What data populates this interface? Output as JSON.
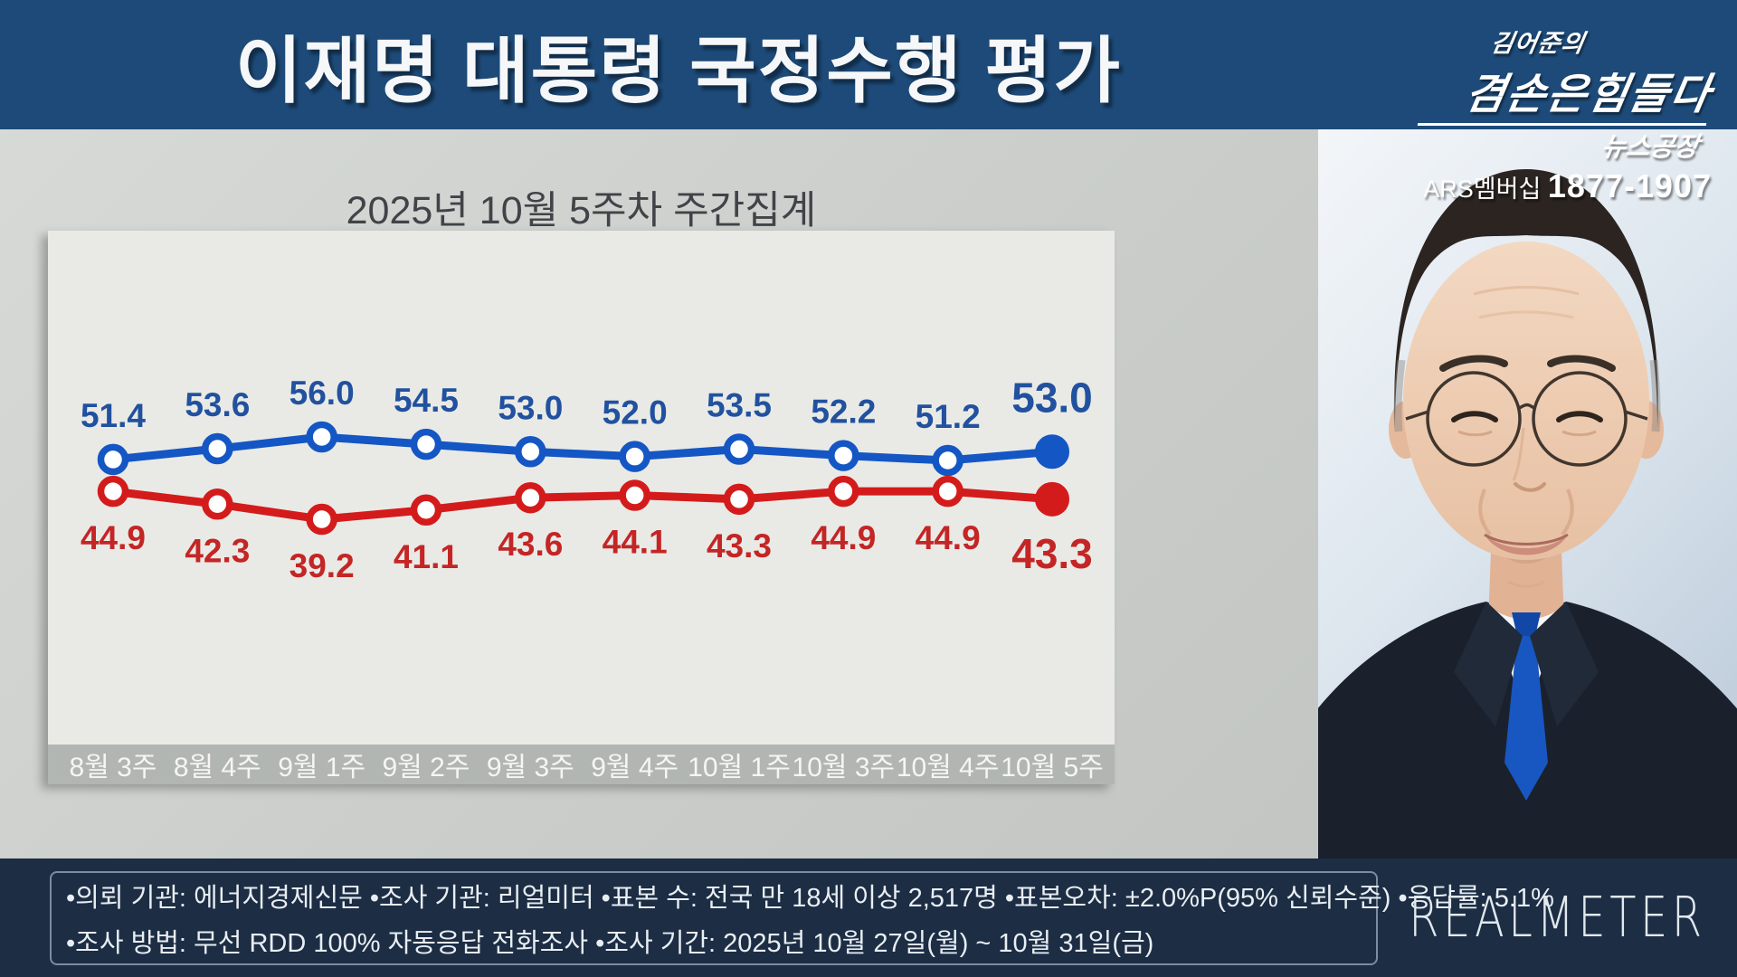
{
  "header": {
    "title": "이재명 대통령 국정수행 평가",
    "logo": {
      "line1": "김어준의",
      "line2": "겸손은힘들다",
      "line3": "뉴스공장",
      "ars_label": "ARS멤버십",
      "ars_phone": "1877-1907"
    }
  },
  "chart_data": {
    "type": "line",
    "title": "2025년 10월 5주차 주간집계",
    "categories": [
      "8월 3주",
      "8월 4주",
      "9월 1주",
      "9월 2주",
      "9월 3주",
      "9월 4주",
      "10월 1주",
      "10월 3주",
      "10월 4주",
      "10월 5주"
    ],
    "series": [
      {
        "name": "positive",
        "color": "#1456c4",
        "label_color": "#21519f",
        "values": [
          51.4,
          53.6,
          56.0,
          54.5,
          53.0,
          52.0,
          53.5,
          52.2,
          51.2,
          53.0
        ]
      },
      {
        "name": "negative",
        "color": "#d41b1b",
        "label_color": "#c42525",
        "values": [
          44.9,
          42.3,
          39.2,
          41.1,
          43.6,
          44.1,
          43.3,
          44.9,
          44.9,
          43.3
        ]
      }
    ],
    "ylim": [
      36,
      60
    ],
    "grid": false,
    "legend": "none",
    "last_point_emphasized": true
  },
  "footer": {
    "line1": "•의뢰 기관: 에너지경제신문 •조사 기관: 리얼미터 •표본 수: 전국 만 18세 이상 2,517명 •표본오차: ±2.0%P(95% 신뢰수준) •응답률: 5.1%",
    "line2": "•조사 방법: 무선 RDD 100% 자동응답 전화조사 •조사 기간: 2025년 10월 27일(월) ~ 10월 31일(금)",
    "brand": "REALMETER"
  }
}
